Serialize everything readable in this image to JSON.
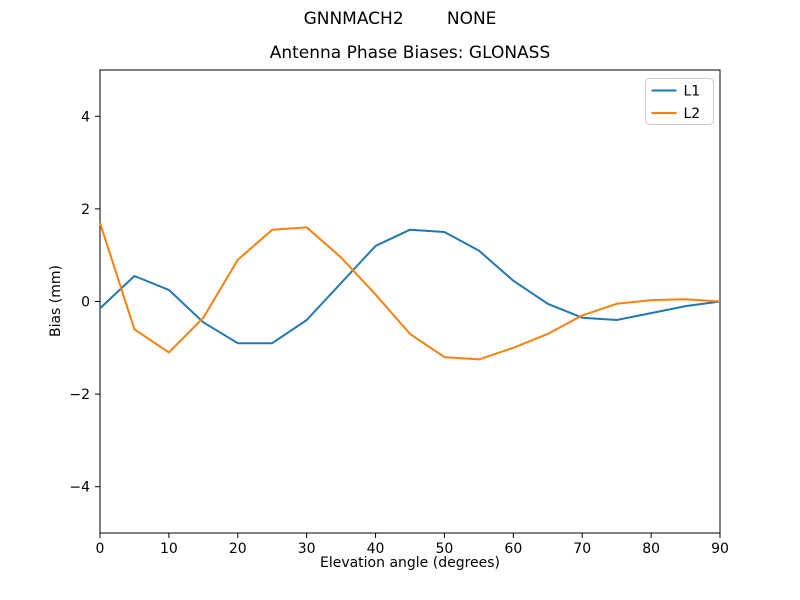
{
  "header": {
    "suptitle": "GNNMACH2        NONE"
  },
  "chart_data": {
    "type": "line",
    "title": "Antenna Phase Biases: GLONASS",
    "xlabel": "Elevation angle (degrees)",
    "ylabel": "Bias (mm)",
    "xlim": [
      0,
      90
    ],
    "ylim": [
      -5,
      5
    ],
    "xticks": [
      0,
      10,
      20,
      30,
      40,
      50,
      60,
      70,
      80,
      90
    ],
    "xtick_labels": [
      "0",
      "10",
      "20",
      "30",
      "40",
      "50",
      "60",
      "70",
      "80",
      "90"
    ],
    "yticks": [
      -4,
      -2,
      0,
      2,
      4
    ],
    "ytick_labels": [
      "−4",
      "−2",
      "0",
      "2",
      "4"
    ],
    "grid": false,
    "legend_position": "upper right",
    "x": [
      0,
      5,
      10,
      15,
      20,
      25,
      30,
      35,
      40,
      45,
      50,
      55,
      60,
      65,
      70,
      75,
      80,
      85,
      90
    ],
    "series": [
      {
        "name": "L1",
        "color": "#1f77b4",
        "values": [
          -0.15,
          0.55,
          0.25,
          -0.45,
          -0.9,
          -0.9,
          -0.4,
          0.4,
          1.2,
          1.55,
          1.5,
          1.1,
          0.45,
          -0.05,
          -0.35,
          -0.4,
          -0.25,
          -0.1,
          0.0
        ]
      },
      {
        "name": "L2",
        "color": "#ff7f0e",
        "values": [
          1.7,
          -0.6,
          -1.1,
          -0.35,
          0.9,
          1.55,
          1.6,
          0.95,
          0.15,
          -0.7,
          -1.2,
          -1.25,
          -1.0,
          -0.7,
          -0.3,
          -0.05,
          0.03,
          0.05,
          0.0
        ]
      }
    ]
  }
}
